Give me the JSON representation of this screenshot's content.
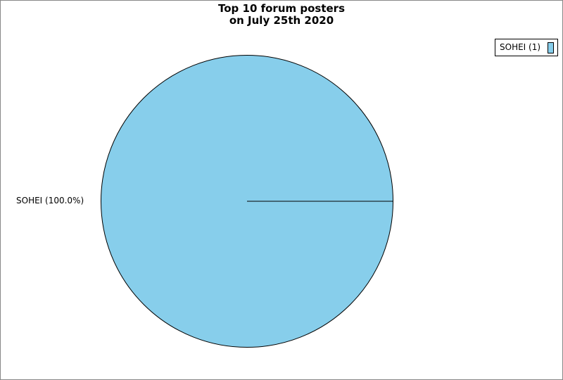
{
  "chart_data": {
    "type": "pie",
    "title": [
      "Top 10 forum posters",
      "on July 25th 2020"
    ],
    "slices": [
      {
        "name": "SOHEI",
        "value": 1,
        "percent_label": "SOHEI (100.0%)",
        "legend_label": "SOHEI (1)",
        "color": "#87ceeb"
      }
    ],
    "legend_placement": "top-right"
  }
}
